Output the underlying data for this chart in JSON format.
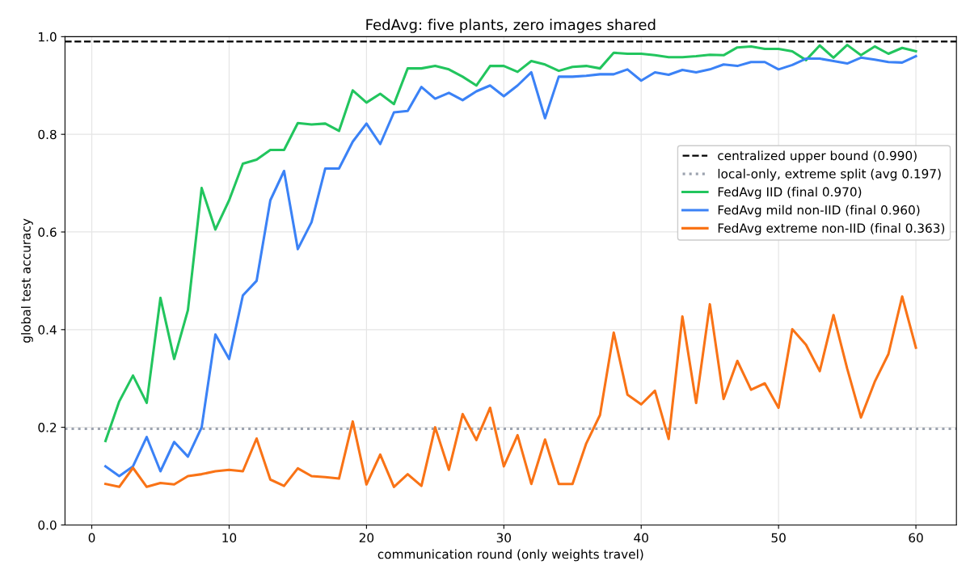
{
  "chart_data": {
    "type": "line",
    "title": "FedAvg: five plants, zero images shared",
    "xlabel": "communication round (only weights travel)",
    "ylabel": "global test accuracy",
    "x": [
      1,
      2,
      3,
      4,
      5,
      6,
      7,
      8,
      9,
      10,
      11,
      12,
      13,
      14,
      15,
      16,
      17,
      18,
      19,
      20,
      21,
      22,
      23,
      24,
      25,
      26,
      27,
      28,
      29,
      30,
      31,
      32,
      33,
      34,
      35,
      36,
      37,
      38,
      39,
      40,
      41,
      42,
      43,
      44,
      45,
      46,
      47,
      48,
      49,
      50,
      51,
      52,
      53,
      54,
      55,
      56,
      57,
      58,
      59,
      60
    ],
    "series": [
      {
        "name": "FedAvg IID (final 0.970)",
        "color": "#22c55e",
        "values": [
          0.172,
          0.253,
          0.306,
          0.25,
          0.465,
          0.34,
          0.44,
          0.69,
          0.605,
          0.665,
          0.74,
          0.748,
          0.768,
          0.768,
          0.823,
          0.82,
          0.822,
          0.807,
          0.89,
          0.865,
          0.883,
          0.862,
          0.935,
          0.935,
          0.94,
          0.933,
          0.918,
          0.9,
          0.94,
          0.94,
          0.928,
          0.95,
          0.943,
          0.93,
          0.938,
          0.94,
          0.935,
          0.967,
          0.965,
          0.965,
          0.962,
          0.958,
          0.958,
          0.96,
          0.963,
          0.962,
          0.978,
          0.98,
          0.975,
          0.975,
          0.97,
          0.952,
          0.982,
          0.957,
          0.983,
          0.962,
          0.98,
          0.965,
          0.977,
          0.97
        ]
      },
      {
        "name": "FedAvg mild non-IID (final 0.960)",
        "color": "#3b82f6",
        "values": [
          0.12,
          0.1,
          0.12,
          0.18,
          0.11,
          0.17,
          0.14,
          0.2,
          0.39,
          0.34,
          0.47,
          0.5,
          0.665,
          0.725,
          0.565,
          0.62,
          0.73,
          0.73,
          0.785,
          0.822,
          0.78,
          0.845,
          0.848,
          0.897,
          0.873,
          0.885,
          0.87,
          0.888,
          0.9,
          0.878,
          0.9,
          0.927,
          0.833,
          0.918,
          0.918,
          0.92,
          0.923,
          0.923,
          0.933,
          0.91,
          0.927,
          0.922,
          0.932,
          0.927,
          0.933,
          0.943,
          0.94,
          0.948,
          0.948,
          0.933,
          0.942,
          0.955,
          0.955,
          0.95,
          0.945,
          0.957,
          0.953,
          0.948,
          0.947,
          0.96
        ]
      },
      {
        "name": "FedAvg extreme non-IID (final 0.363)",
        "color": "#f97316",
        "values": [
          0.084,
          0.078,
          0.117,
          0.078,
          0.086,
          0.083,
          0.1,
          0.104,
          0.11,
          0.113,
          0.11,
          0.177,
          0.093,
          0.08,
          0.116,
          0.1,
          0.098,
          0.095,
          0.212,
          0.083,
          0.144,
          0.078,
          0.104,
          0.08,
          0.2,
          0.113,
          0.227,
          0.174,
          0.24,
          0.12,
          0.184,
          0.084,
          0.175,
          0.084,
          0.084,
          0.167,
          0.225,
          0.394,
          0.267,
          0.247,
          0.275,
          0.176,
          0.427,
          0.25,
          0.452,
          0.258,
          0.336,
          0.277,
          0.29,
          0.24,
          0.401,
          0.369,
          0.315,
          0.43,
          0.32,
          0.22,
          0.293,
          0.35,
          0.468,
          0.363
        ]
      }
    ],
    "ref_lines": [
      {
        "axis": "y",
        "value": 0.99,
        "label": "centralized upper bound (0.990)",
        "color": "#000000",
        "line_style": "dashed"
      },
      {
        "axis": "y",
        "value": 0.197,
        "label": "local-only, extreme split (avg 0.197)",
        "color": "#9ca3af",
        "line_style": "dotted"
      }
    ],
    "xlim": [
      -1.95,
      62.95
    ],
    "xticks": [
      0,
      10,
      20,
      30,
      40,
      50,
      60
    ],
    "ylim": [
      0,
      1
    ],
    "yticks": [
      {
        "value": 0,
        "label": "0.0"
      },
      {
        "value": 0.2,
        "label": "0.2"
      },
      {
        "value": 0.4,
        "label": "0.4"
      },
      {
        "value": 0.6,
        "label": "0.6"
      },
      {
        "value": 0.8,
        "label": "0.8"
      },
      {
        "value": 1,
        "label": "1.0"
      }
    ],
    "grid": true,
    "legend": "right",
    "marker": "none",
    "line_style": "solid"
  }
}
